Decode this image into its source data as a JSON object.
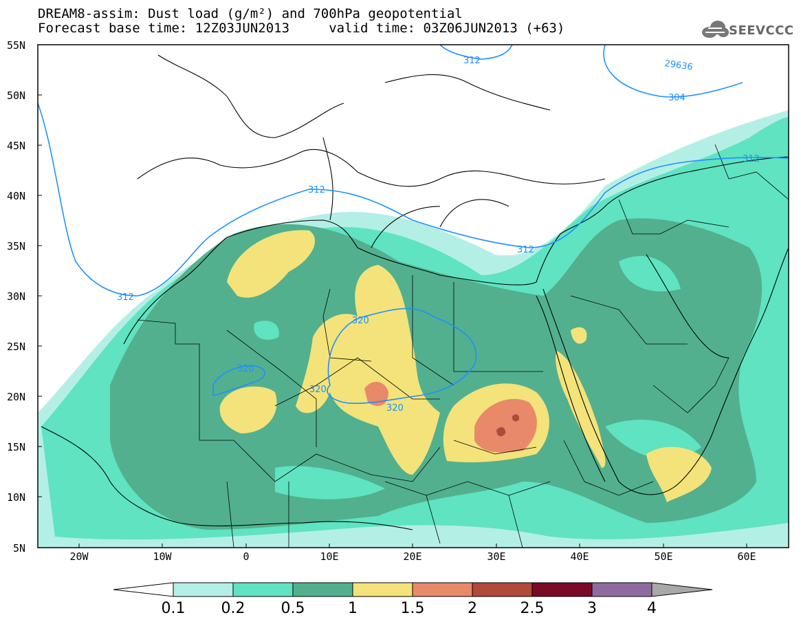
{
  "title": {
    "line1": "DREAM8-assim: Dust load (g/m²) and 700hPa geopotential",
    "line2": "Forecast base time: 12Z03JUN2013     valid time: 03Z06JUN2013 (+63)"
  },
  "logo": {
    "text": "SEEVCCC",
    "icon": "cloud-icon"
  },
  "axes": {
    "lat_labels": [
      "55N",
      "50N",
      "45N",
      "40N",
      "35N",
      "30N",
      "25N",
      "20N",
      "15N",
      "10N",
      "5N"
    ],
    "lon_labels": [
      "20W",
      "10W",
      "0",
      "10E",
      "20E",
      "30E",
      "40E",
      "50E",
      "60E"
    ],
    "lat_range": [
      5,
      55
    ],
    "lon_range": [
      -25,
      65
    ]
  },
  "contours": {
    "labels": [
      "312",
      "312",
      "312",
      "312",
      "304",
      "29636",
      "312",
      "320",
      "320",
      "320",
      "320"
    ],
    "color": "#1e90ff"
  },
  "colorbar": {
    "labels": [
      "0.1",
      "0.2",
      "0.5",
      "1",
      "1.5",
      "2",
      "2.5",
      "3",
      "4"
    ],
    "colors": [
      "#b4efe6",
      "#5fe3c0",
      "#52b08e",
      "#f3e37a",
      "#e8896a",
      "#b04a3a",
      "#7a0a28",
      "#8e6aa0",
      "#a8a8a8"
    ]
  }
}
